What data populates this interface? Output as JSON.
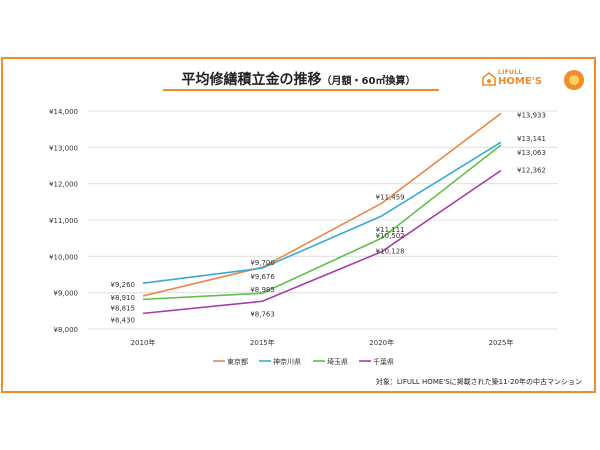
{
  "title": {
    "main": "平均修繕積立金の推移",
    "sub": "（月額・60㎡換算）"
  },
  "logo": {
    "small": "LIFULL",
    "main": "HOME'S"
  },
  "footnote": "対象：LIFULL HOME'Sに掲載された築11-20年の中古マンション",
  "colors": {
    "frame": "#f08c2c",
    "grid": "#dcdcdc",
    "text": "#333333"
  },
  "chart_data": {
    "type": "line",
    "title": "平均修繕積立金の推移（月額・60㎡換算）",
    "xlabel": "",
    "ylabel": "",
    "categories": [
      "2010年",
      "2015年",
      "2020年",
      "2025年"
    ],
    "ylim": [
      8000,
      14000
    ],
    "yticks": [
      8000,
      9000,
      10000,
      11000,
      12000,
      13000,
      14000
    ],
    "ytick_labels": [
      "¥8,000",
      "¥9,000",
      "¥10,000",
      "¥11,000",
      "¥12,000",
      "¥13,000",
      "¥14,000"
    ],
    "grid": true,
    "legend": "bottom",
    "series": [
      {
        "name": "東京都",
        "color": "#e8884a",
        "values": [
          8910,
          9700,
          11459,
          13933
        ],
        "labels": [
          "¥8,910",
          "¥9,700",
          "¥11,459",
          "¥13,933"
        ]
      },
      {
        "name": "神奈川県",
        "color": "#3aa8d8",
        "values": [
          9260,
          9676,
          11111,
          13141
        ],
        "labels": [
          "¥9,260",
          "¥9,676",
          "¥11,111",
          "¥13,141"
        ]
      },
      {
        "name": "埼玉県",
        "color": "#5fbf4a",
        "values": [
          8815,
          8985,
          10502,
          13063
        ],
        "labels": [
          "¥8,815",
          "¥8,985",
          "¥10,502",
          "¥13,063"
        ]
      },
      {
        "name": "千葉県",
        "color": "#a83aa8",
        "values": [
          8430,
          8763,
          10128,
          12362
        ],
        "labels": [
          "¥8,430",
          "¥8,763",
          "¥10,128",
          "¥12,362"
        ]
      }
    ]
  }
}
